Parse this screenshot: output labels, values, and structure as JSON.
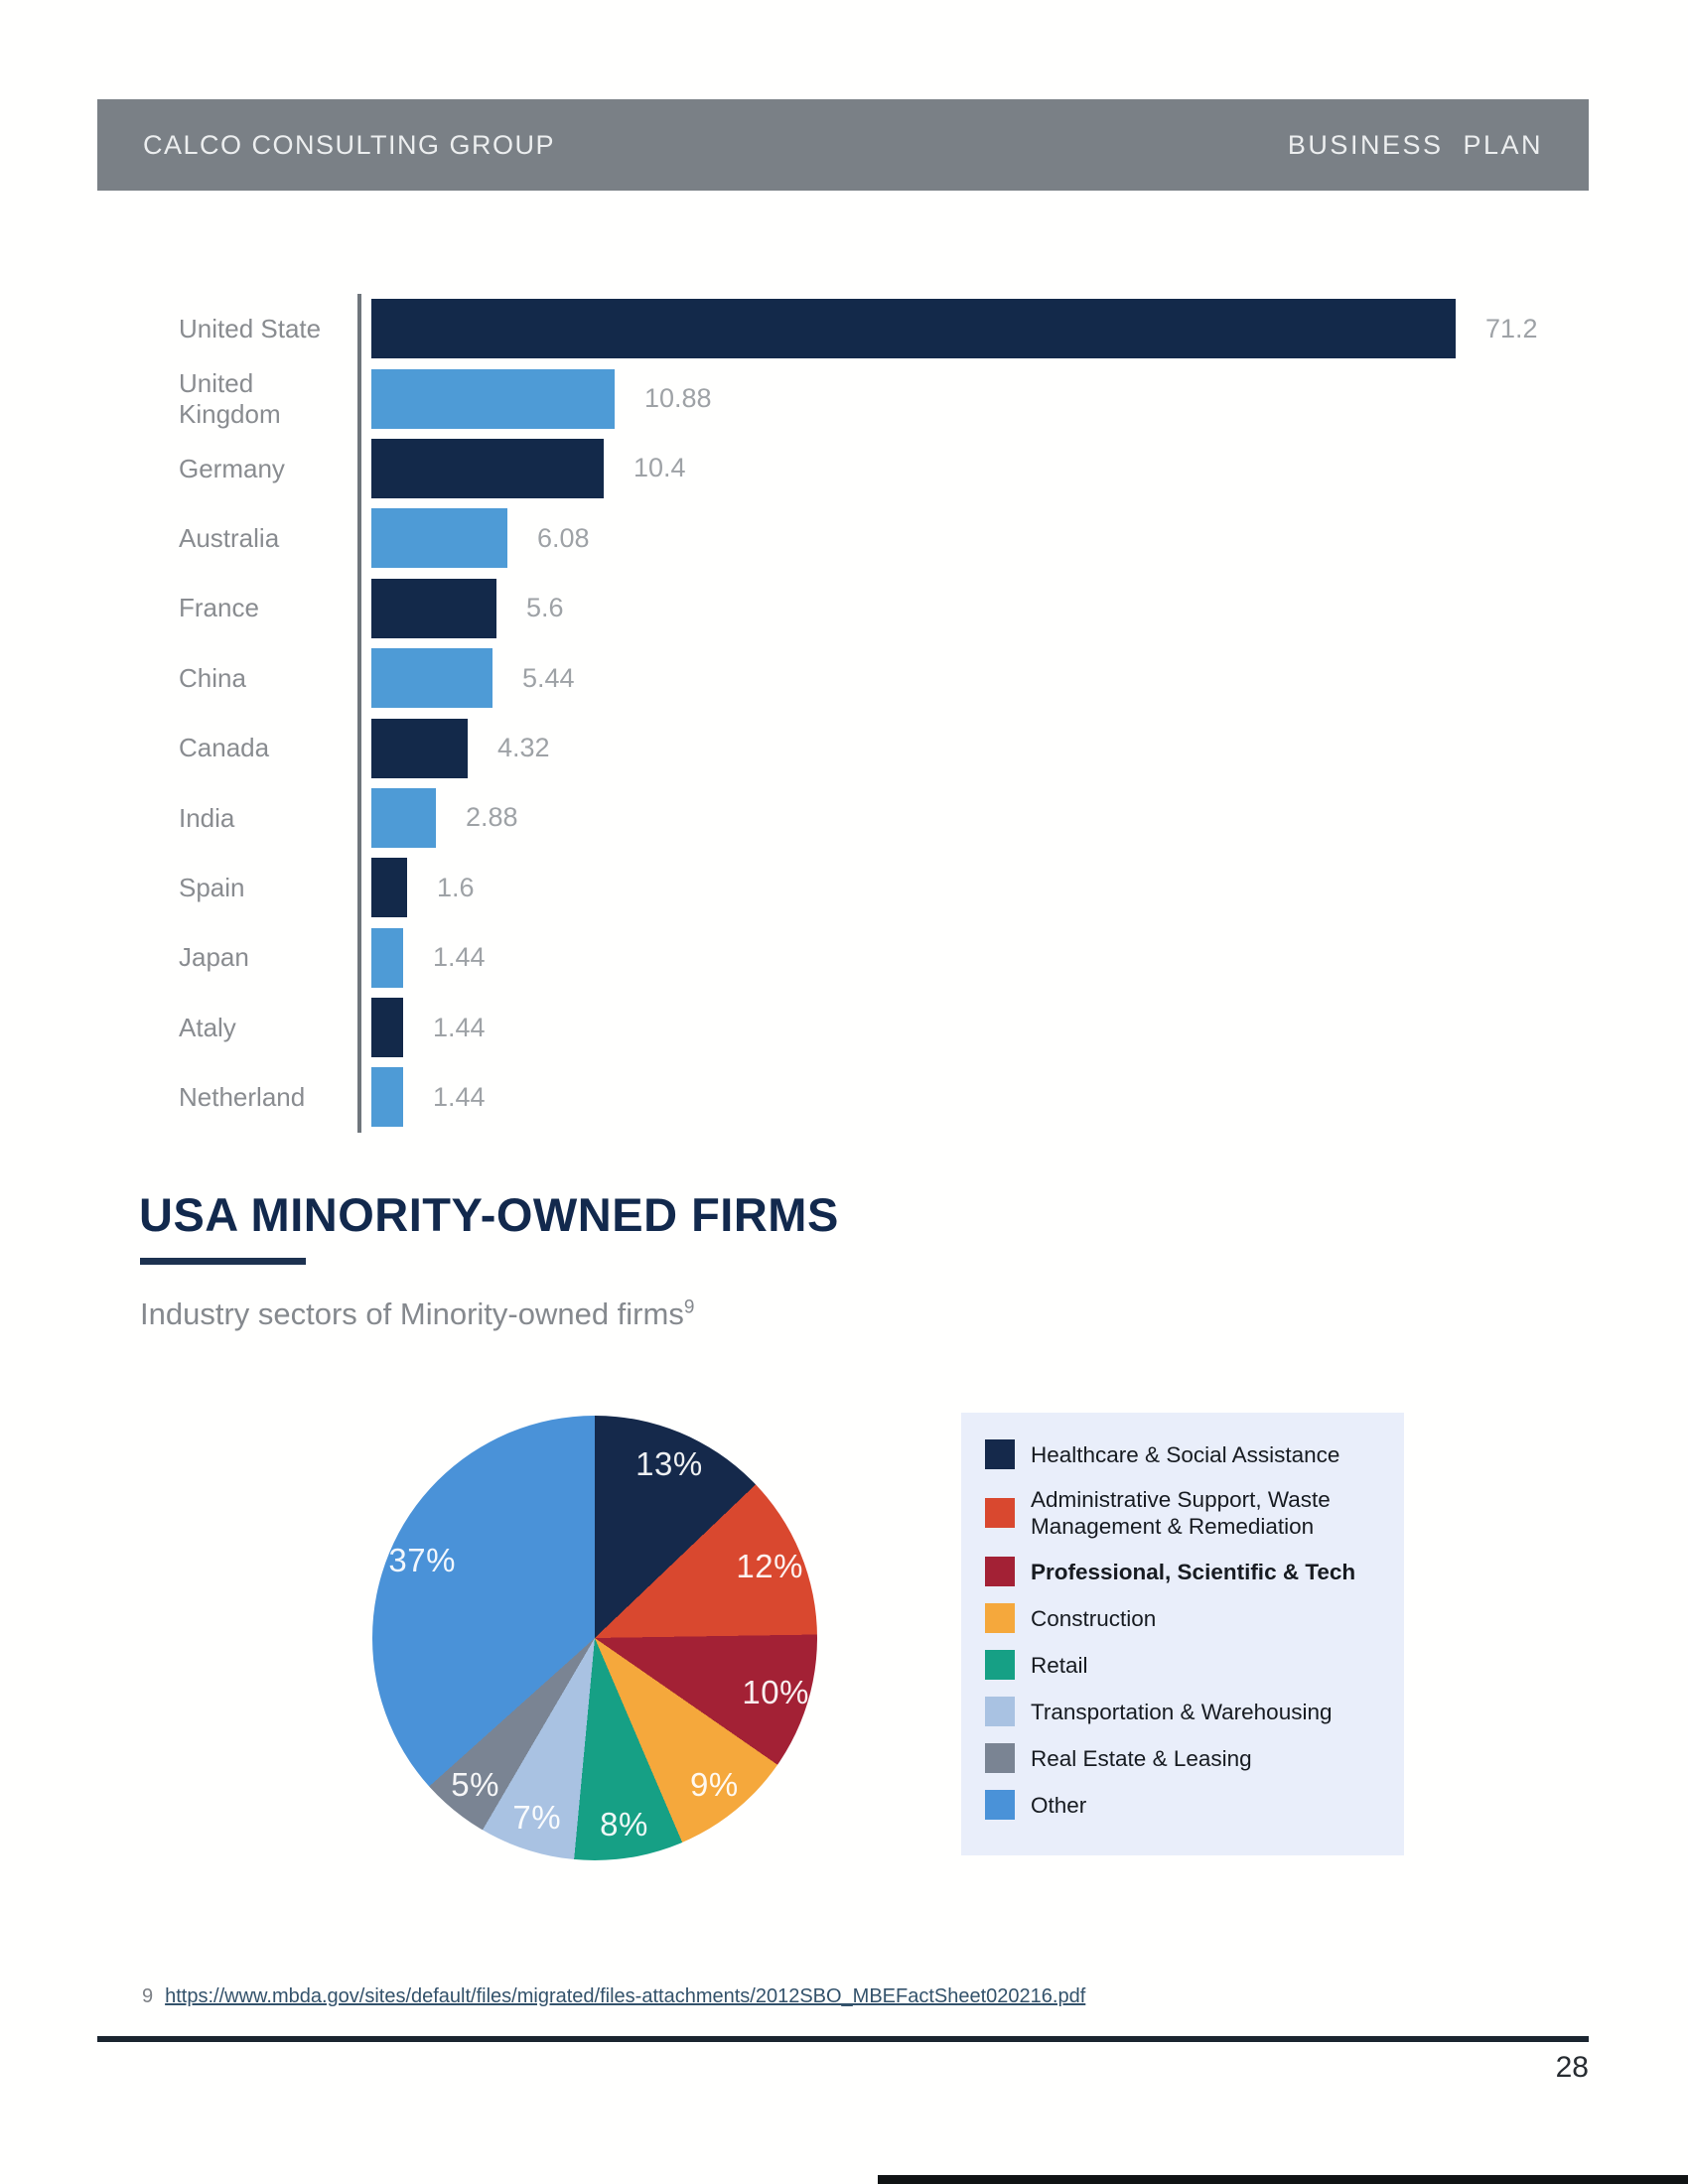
{
  "header": {
    "company": "CALCO CONSULTING GROUP",
    "doc_type": "BUSINESS  PLAN"
  },
  "section": {
    "title": "USA MINORITY-OWNED FIRMS",
    "subtitle": "Industry sectors of Minority-owned firms",
    "subtitle_superscript": "9"
  },
  "chart_data": [
    {
      "type": "bar",
      "orientation": "horizontal",
      "title": "",
      "xlabel": "",
      "ylabel": "",
      "categories": [
        "United State",
        "United Kingdom",
        "Germany",
        "Australia",
        "France",
        "China",
        "Canada",
        "India",
        "Spain",
        "Japan",
        "Ataly",
        "Netherland"
      ],
      "values": [
        71.2,
        10.88,
        10.4,
        6.08,
        5.6,
        5.44,
        4.32,
        2.88,
        1.6,
        1.44,
        1.44,
        1.44
      ],
      "value_labels": [
        "71.2",
        "10.88",
        "10.4",
        "6.08",
        "5.6",
        "5.44",
        "4.32",
        "2.88",
        "1.6",
        "1.44",
        "1.44",
        "1.44"
      ],
      "bar_colors_alternating": [
        "#13294a",
        "#4e9bd6"
      ],
      "axis_color": "#6f767c",
      "grid": false,
      "note": "first bar clipped to chart width"
    },
    {
      "type": "pie",
      "title": "Industry sectors of Minority-owned firms",
      "values": [
        13,
        12,
        10,
        9,
        8,
        7,
        5,
        37
      ],
      "percent_labels": [
        "13%",
        "12%",
        "10%",
        "9%",
        "8%",
        "7%",
        "5%",
        "37%"
      ],
      "colors": [
        "#15294b",
        "#d9482f",
        "#a32135",
        "#f5a83c",
        "#16a085",
        "#a9c2e2",
        "#7a8493",
        "#4a92d8"
      ],
      "start_angle_deg": 0,
      "direction": "clockwise",
      "legend_position": "right",
      "legend_background": "#e9eefa",
      "legend": [
        {
          "label": "Healthcare & Social Assistance",
          "bold": false
        },
        {
          "label": "Administrative Support, Waste Management & Remediation",
          "bold": false
        },
        {
          "label": "Professional, Scientific & Tech",
          "bold": true
        },
        {
          "label": "Construction",
          "bold": false
        },
        {
          "label": "Retail",
          "bold": false
        },
        {
          "label": "Transportation & Warehousing",
          "bold": false
        },
        {
          "label": "Real Estate & Leasing",
          "bold": false
        },
        {
          "label": "Other",
          "bold": false
        }
      ]
    }
  ],
  "footnote": {
    "number": "9",
    "url": "https://www.mbda.gov/sites/default/files/migrated/files-attachments/2012SBO_MBEFactSheet020216.pdf"
  },
  "page_number": "28",
  "colors": {
    "header_bar": "#7a8086",
    "header_text": "#eceeef",
    "title_navy": "#12294d",
    "label_gray": "#898c90",
    "value_gray": "#9ea2a6",
    "footer_rule": "#1b2530",
    "link": "#33526b"
  }
}
